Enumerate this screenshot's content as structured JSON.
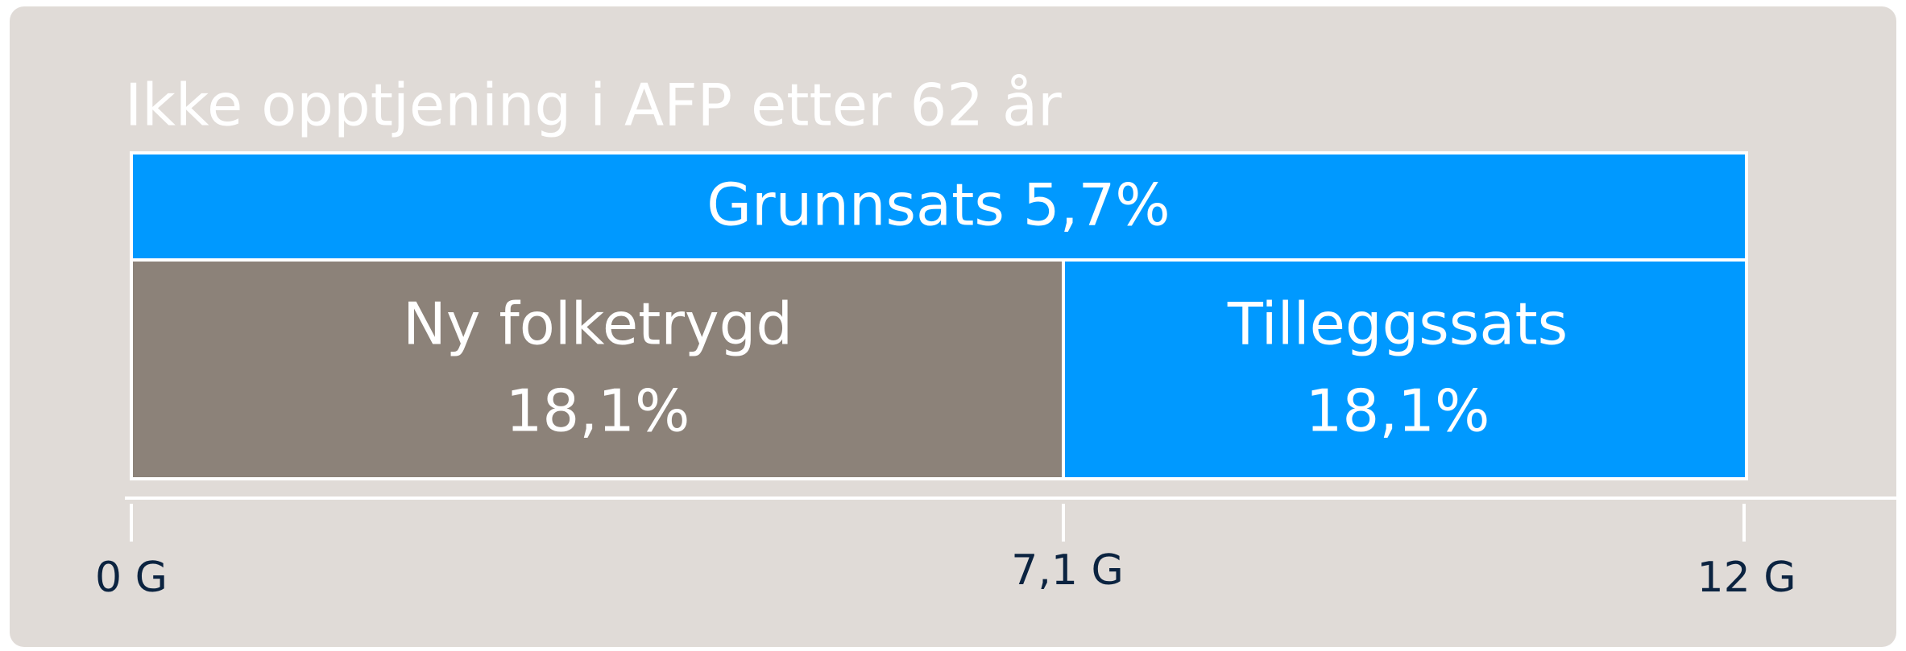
{
  "title": "Ikke opptjening i AFP etter 62 år",
  "blocks": [
    {
      "lines": [
        "Grunnsats 5,7%"
      ]
    },
    {
      "lines": [
        "Ny folketrygd",
        "18,1%"
      ]
    },
    {
      "lines": [
        "Tilleggssats",
        "18,1%"
      ]
    }
  ],
  "axis": {
    "labels": [
      "0 G",
      "7,1 G",
      "12 G"
    ]
  }
}
